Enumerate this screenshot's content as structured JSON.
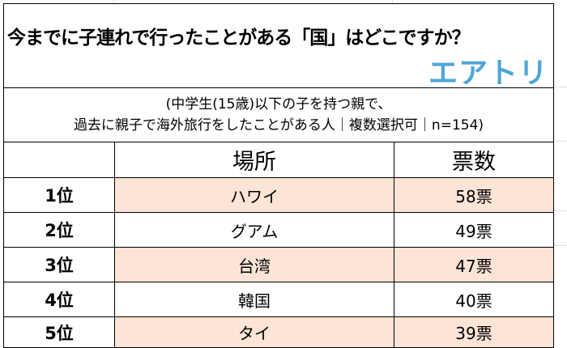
{
  "title": "今までに子連れで行ったことがある「国」はどこですか？",
  "logo": "エアトリ",
  "subtitle": {
    "line1": "(中学生(15歳)以下の子を持つ親で、",
    "line2": "過去に親子で海外旅行をしたことがある人｜複数選択可｜n=154)"
  },
  "colors": {
    "highlight": "#fce4d6",
    "logo": "#4fa6d6"
  },
  "chart_data": {
    "type": "table",
    "columns": [
      "",
      "場所",
      "票数"
    ],
    "rows": [
      {
        "rank": "1位",
        "place": "ハワイ",
        "votes": "58票"
      },
      {
        "rank": "2位",
        "place": "グアム",
        "votes": "49票"
      },
      {
        "rank": "3位",
        "place": "台湾",
        "votes": "47票"
      },
      {
        "rank": "4位",
        "place": "韓国",
        "votes": "40票"
      },
      {
        "rank": "5位",
        "place": "タイ",
        "votes": "39票"
      }
    ]
  }
}
